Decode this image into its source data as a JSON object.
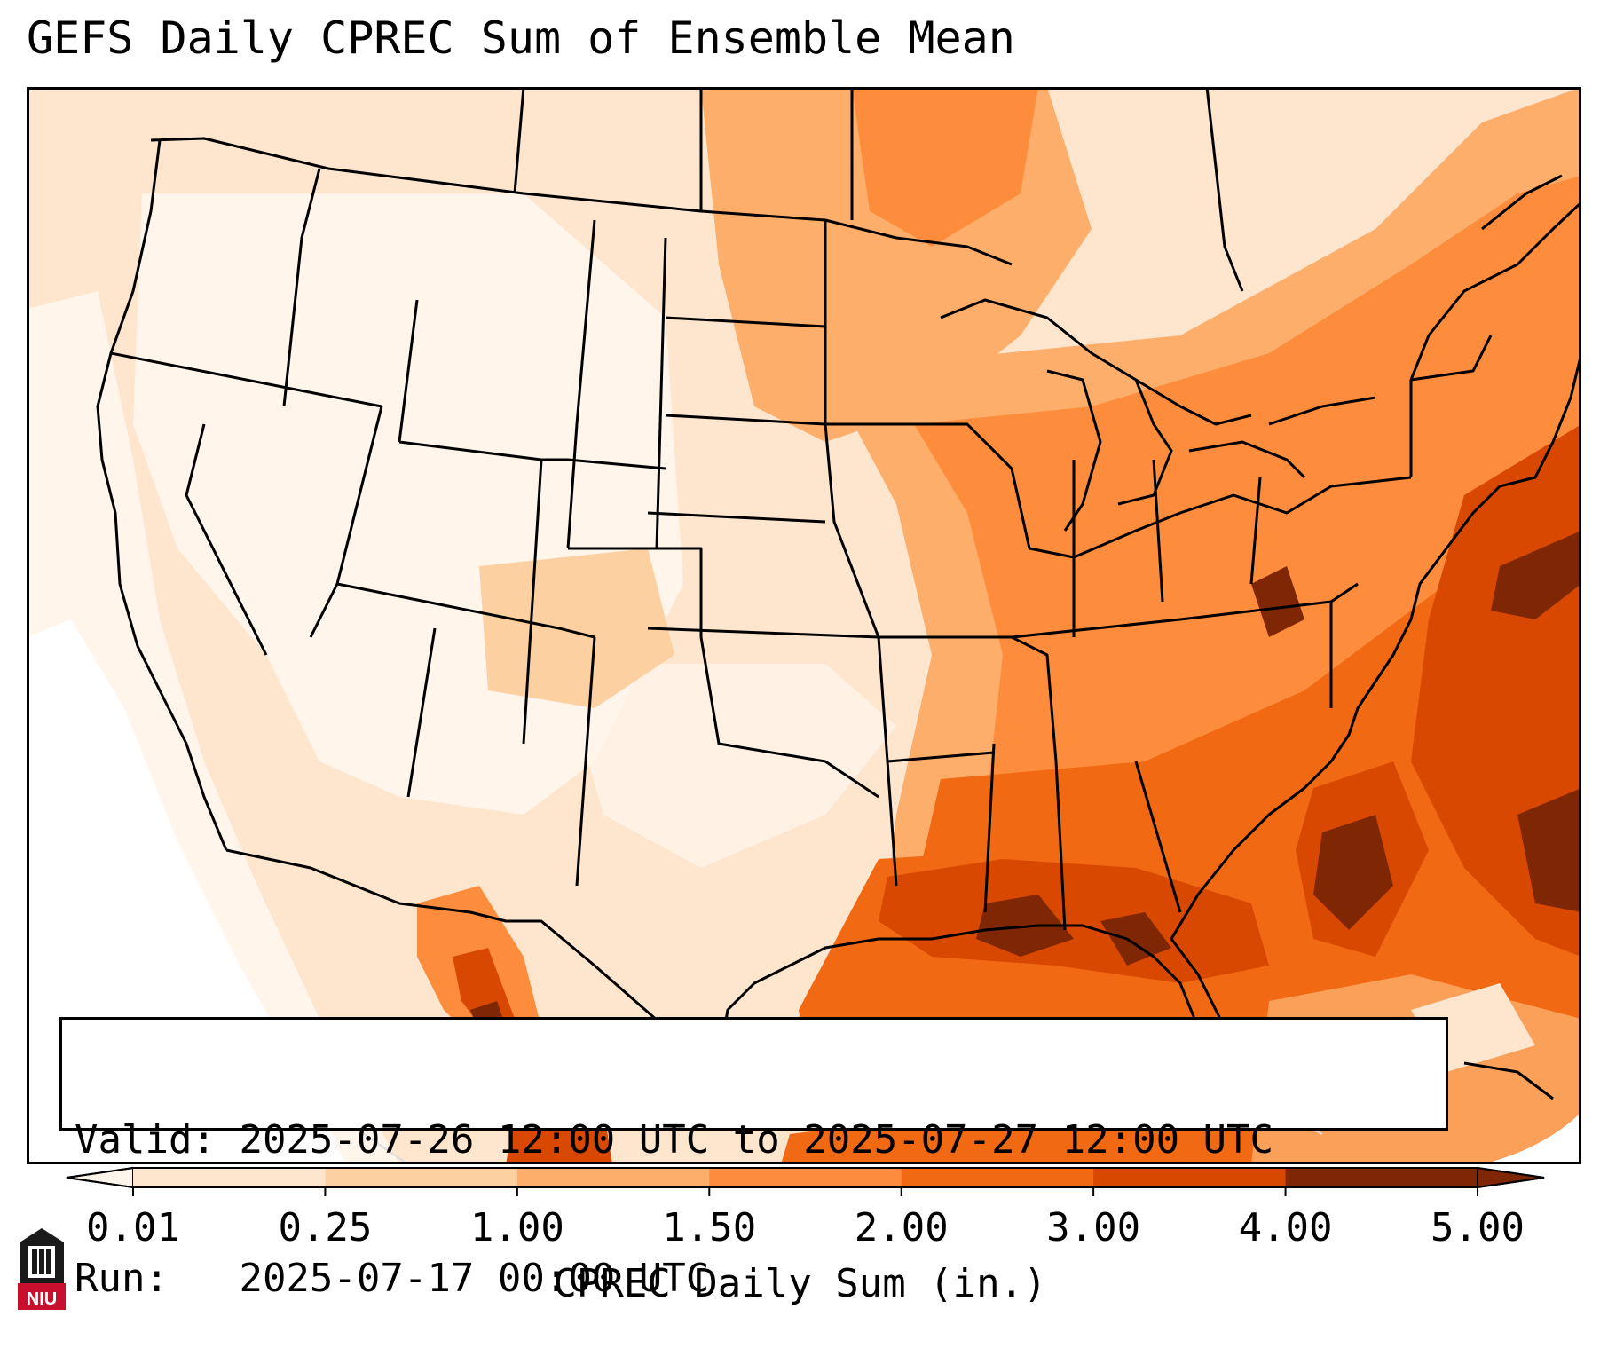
{
  "title": "GEFS Daily CPREC Sum of Ensemble Mean",
  "info": {
    "valid_label": "Valid:",
    "valid_text": "2025-07-26 12:00 UTC to 2025-07-27 12:00 UTC",
    "run_label": "Run:",
    "run_text": "2025-07-17 00:00 UTC"
  },
  "colorbar": {
    "label": "CPREC Daily Sum (in.)",
    "ticks": [
      "0.01",
      "0.25",
      "1.00",
      "1.50",
      "2.00",
      "3.00",
      "4.00",
      "5.00"
    ],
    "colors": [
      "#fff5eb",
      "#fee6ce",
      "#fdd0a2",
      "#fdae6b",
      "#fd8d3c",
      "#f16913",
      "#d94801",
      "#7f2704"
    ],
    "extend": "both"
  },
  "logo": {
    "text": "NIU",
    "color": "#c8102e"
  }
}
